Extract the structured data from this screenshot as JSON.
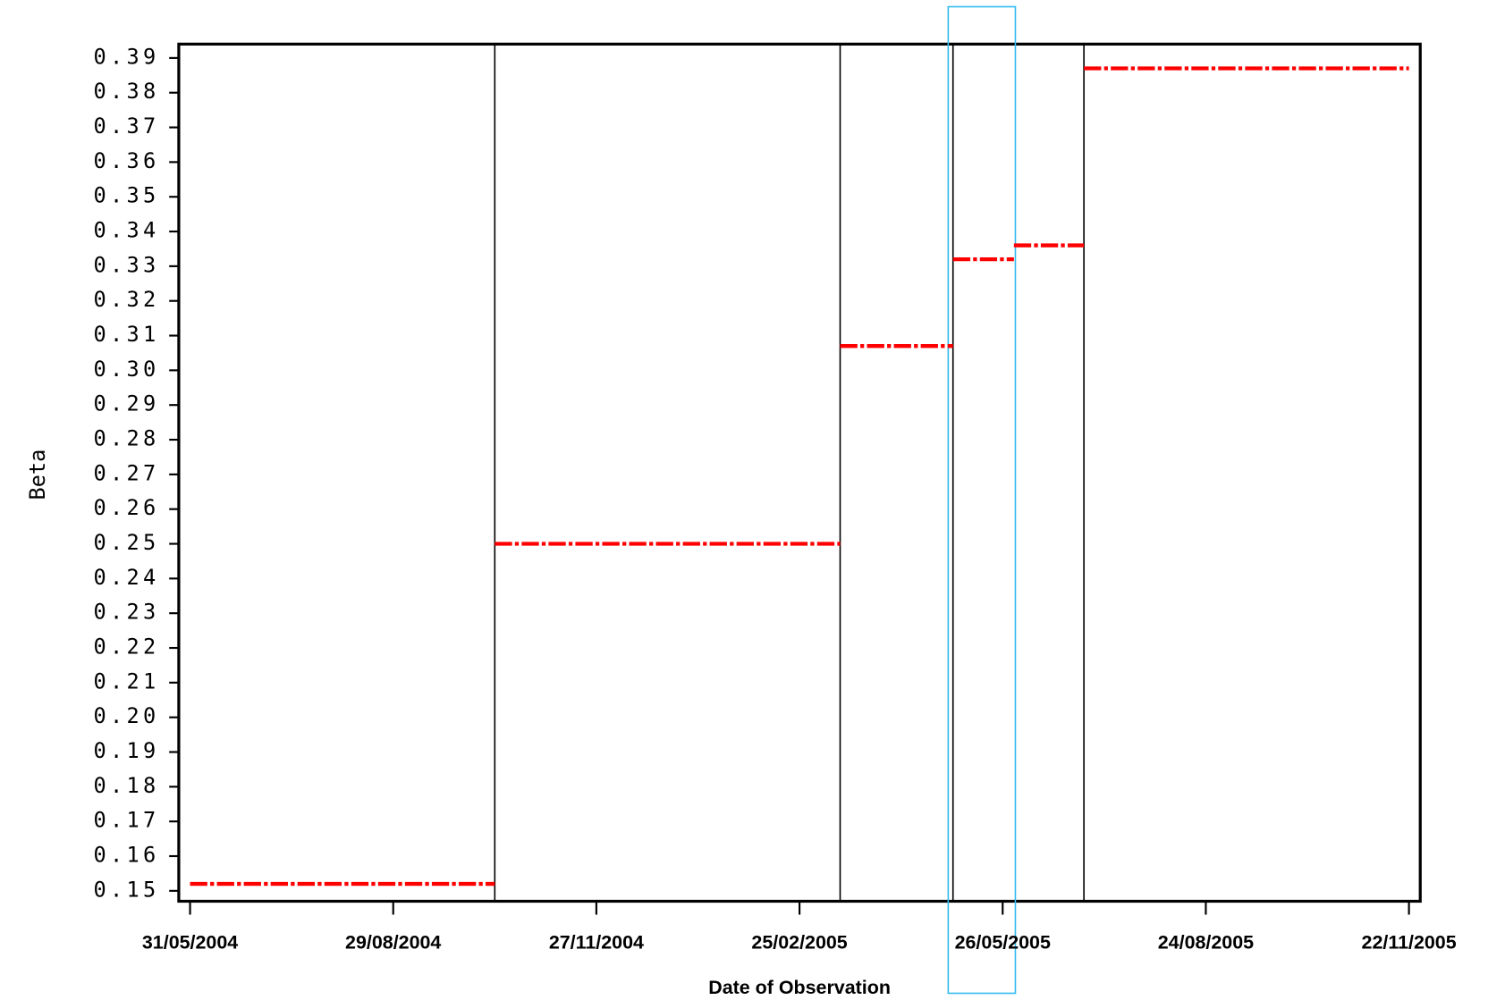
{
  "chart_data": {
    "type": "step",
    "x_label": "Date of Observation",
    "y_label": "Beta",
    "xlim": [
      -5,
      545
    ],
    "xticks": [
      {
        "value": 0,
        "label": "31/05/2004"
      },
      {
        "value": 90,
        "label": "29/08/2004"
      },
      {
        "value": 180,
        "label": "27/11/2004"
      },
      {
        "value": 270,
        "label": "25/02/2005"
      },
      {
        "value": 360,
        "label": "26/05/2005"
      },
      {
        "value": 450,
        "label": "24/08/2005"
      },
      {
        "value": 540,
        "label": "22/11/2005"
      }
    ],
    "ylim": [
      0.147,
      0.394
    ],
    "yticks": [
      0.15,
      0.16,
      0.17,
      0.18,
      0.19,
      0.2,
      0.21,
      0.22,
      0.23,
      0.24,
      0.25,
      0.26,
      0.27,
      0.28,
      0.29,
      0.3,
      0.31,
      0.32,
      0.33,
      0.34,
      0.35,
      0.36,
      0.37,
      0.38,
      0.39
    ],
    "yticks_labels": [
      "0.15",
      "0.16",
      "0.17",
      "0.18",
      "0.19",
      "0.20",
      "0.21",
      "0.22",
      "0.23",
      "0.24",
      "0.25",
      "0.26",
      "0.27",
      "0.28",
      "0.29",
      "0.30",
      "0.31",
      "0.32",
      "0.33",
      "0.34",
      "0.35",
      "0.36",
      "0.37",
      "0.38",
      "0.39"
    ],
    "series": [
      {
        "color": "#ff0000",
        "x_start": [
          0,
          135,
          288,
          338,
          365,
          396
        ],
        "x_end": [
          135,
          288,
          338,
          365,
          396,
          540
        ],
        "values": [
          0.152,
          0.25,
          0.307,
          0.332,
          0.336,
          0.387
        ]
      }
    ],
    "break_lines": [
      135,
      288,
      338,
      396
    ]
  }
}
